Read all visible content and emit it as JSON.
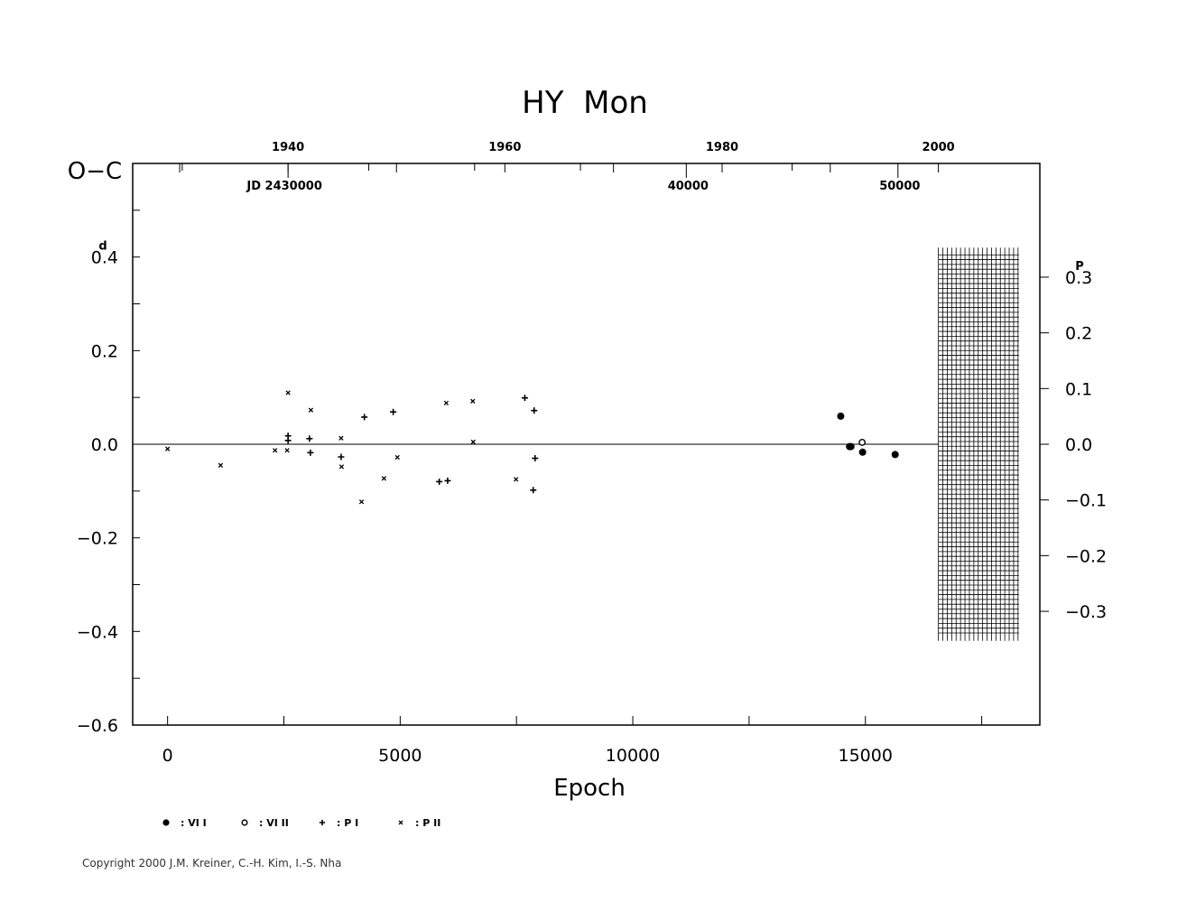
{
  "chart_data": {
    "type": "scatter",
    "title": "HY  Mon",
    "xlabel": "Epoch",
    "ylabel": "O−C",
    "xlim": [
      -750,
      18750
    ],
    "ylim": [
      -0.6,
      0.6
    ],
    "x_ticks": [
      "0",
      "5000",
      "10000",
      "15000"
    ],
    "x_tick_values": [
      0,
      5000,
      10000,
      15000
    ],
    "y_ticks_left": [
      "0.4",
      "0.2",
      "0.0",
      "−0.2",
      "−0.4",
      "−0.6"
    ],
    "y_tick_values_left": [
      0.4,
      0.2,
      0.0,
      -0.2,
      -0.4,
      -0.6
    ],
    "y_unit_left": "d",
    "y_ticks_right": [
      "0.3",
      "0.2",
      "0.1",
      "0.0",
      "−0.1",
      "−0.2",
      "−0.3"
    ],
    "y_tick_values_right": [
      0.3,
      0.2,
      0.1,
      0.0,
      -0.1,
      -0.2,
      -0.3
    ],
    "y_unit_right": "P",
    "period_days": 1.19,
    "top_axis_years": [
      "1940",
      "1960",
      "1980",
      "2000"
    ],
    "top_axis_year_epochs": [
      2590,
      7250,
      11920,
      16570
    ],
    "top_axis_jd": [
      "JD  2430000",
      "40000",
      "50000"
    ],
    "top_axis_jd_epochs": [
      2590,
      11150,
      15700
    ],
    "shaded_region": {
      "from_epoch": 16570,
      "to_epoch": 18300
    },
    "legend_position": "bottom",
    "series": [
      {
        "name": ": VI I",
        "marker": "filled-circle",
        "points": [
          [
            14470,
            0.06
          ],
          [
            14660,
            -0.005
          ],
          [
            14690,
            -0.005
          ],
          [
            14940,
            -0.017
          ],
          [
            15640,
            -0.022
          ]
        ]
      },
      {
        "name": ": VI II",
        "marker": "open-circle",
        "points": [
          [
            14930,
            0.004
          ]
        ]
      },
      {
        "name": ": P I",
        "marker": "plus",
        "points": [
          [
            2590,
            0.018
          ],
          [
            2590,
            0.008
          ],
          [
            3050,
            0.012
          ],
          [
            3070,
            -0.018
          ],
          [
            3730,
            -0.027
          ],
          [
            4230,
            0.058
          ],
          [
            4850,
            0.069
          ],
          [
            5840,
            -0.08
          ],
          [
            6020,
            -0.078
          ],
          [
            7680,
            0.099
          ],
          [
            7860,
            -0.098
          ],
          [
            7880,
            0.072
          ],
          [
            7900,
            -0.03
          ]
        ]
      },
      {
        "name": ": P II",
        "marker": "x",
        "points": [
          [
            0,
            -0.01
          ],
          [
            1140,
            -0.045
          ],
          [
            2310,
            -0.013
          ],
          [
            2570,
            -0.013
          ],
          [
            2590,
            0.11
          ],
          [
            3080,
            0.073
          ],
          [
            3730,
            0.013
          ],
          [
            3740,
            -0.048
          ],
          [
            4170,
            -0.123
          ],
          [
            4650,
            -0.073
          ],
          [
            4940,
            -0.028
          ],
          [
            5990,
            0.088
          ],
          [
            6560,
            0.092
          ],
          [
            6570,
            0.005
          ],
          [
            7490,
            -0.075
          ]
        ]
      }
    ]
  },
  "copyright": "Copyright 2000 J.M. Kreiner, C.-H. Kim, I.-S. Nha"
}
